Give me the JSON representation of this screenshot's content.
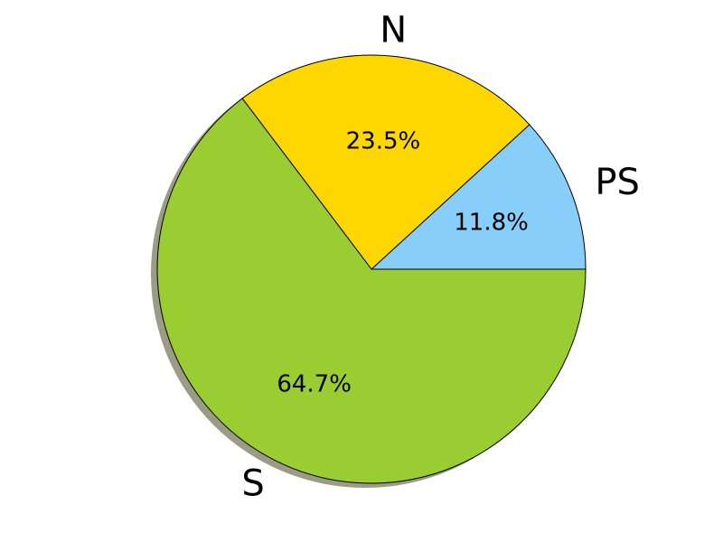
{
  "chart_data": {
    "type": "pie",
    "title": "",
    "categories": [
      "PS",
      "N",
      "S"
    ],
    "values": [
      11.8,
      23.5,
      64.7
    ],
    "percent_labels": [
      "11.8%",
      "23.5%",
      "64.7%"
    ],
    "colors": [
      "#87CEFA",
      "#FFD700",
      "#9ACD32"
    ],
    "start_angle_deg": 0,
    "direction": "counterclockwise",
    "shadow": true,
    "legend": "none"
  }
}
